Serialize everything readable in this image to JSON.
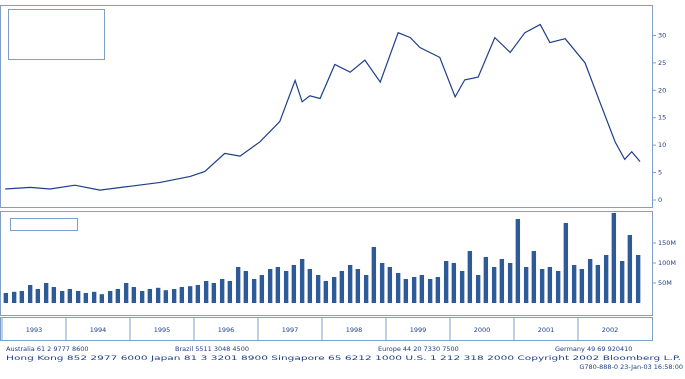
{
  "chart_data": [
    {
      "type": "line",
      "color": "#1d3f86",
      "x": [
        1993.05,
        1993.44,
        1993.75,
        1994.14,
        1994.53,
        1995.0,
        1995.47,
        1995.94,
        1996.17,
        1996.48,
        1996.72,
        1997.03,
        1997.34,
        1997.58,
        1997.69,
        1997.81,
        1997.97,
        1998.2,
        1998.44,
        1998.67,
        1998.91,
        1999.19,
        1999.38,
        1999.53,
        1999.84,
        2000.08,
        2000.23,
        2000.44,
        2000.7,
        2000.94,
        2001.17,
        2001.41,
        2001.56,
        2001.8,
        2002.11,
        2002.34,
        2002.58,
        2002.73,
        2002.84,
        2002.97
      ],
      "values": [
        2.0,
        2.3,
        2.0,
        2.7,
        1.8,
        2.5,
        3.2,
        4.3,
        5.2,
        8.5,
        8.0,
        10.6,
        14.3,
        21.8,
        17.9,
        19.0,
        18.5,
        24.7,
        23.3,
        25.5,
        21.5,
        30.5,
        29.6,
        27.8,
        26.0,
        18.8,
        21.9,
        22.4,
        29.6,
        26.9,
        30.5,
        32.0,
        28.7,
        29.4,
        25.0,
        17.9,
        10.6,
        7.4,
        8.8,
        7.0
      ],
      "xlim": [
        1993,
        2003
      ],
      "ylim": [
        0,
        35
      ],
      "yticks": [
        0,
        5,
        10,
        15,
        20,
        25,
        30
      ]
    },
    {
      "type": "bar",
      "color": "#2e5b98",
      "x": [
        1993.06,
        1993.19,
        1993.31,
        1993.44,
        1993.56,
        1993.69,
        1993.81,
        1993.94,
        1994.06,
        1994.19,
        1994.31,
        1994.44,
        1994.56,
        1994.69,
        1994.81,
        1994.94,
        1995.06,
        1995.19,
        1995.31,
        1995.44,
        1995.56,
        1995.69,
        1995.81,
        1995.94,
        1996.06,
        1996.19,
        1996.31,
        1996.44,
        1996.56,
        1996.69,
        1996.81,
        1996.94,
        1997.06,
        1997.19,
        1997.31,
        1997.44,
        1997.56,
        1997.69,
        1997.81,
        1997.94,
        1998.06,
        1998.19,
        1998.31,
        1998.44,
        1998.56,
        1998.69,
        1998.81,
        1998.94,
        1999.06,
        1999.19,
        1999.31,
        1999.44,
        1999.56,
        1999.69,
        1999.81,
        1999.94,
        2000.06,
        2000.19,
        2000.31,
        2000.44,
        2000.56,
        2000.69,
        2000.81,
        2000.94,
        2001.06,
        2001.19,
        2001.31,
        2001.44,
        2001.56,
        2001.69,
        2001.81,
        2001.94,
        2002.06,
        2002.19,
        2002.31,
        2002.44,
        2002.56,
        2002.69,
        2002.81,
        2002.94
      ],
      "values": [
        25,
        28,
        30,
        45,
        35,
        50,
        40,
        30,
        35,
        30,
        25,
        28,
        22,
        30,
        35,
        50,
        40,
        30,
        35,
        38,
        32,
        35,
        40,
        42,
        45,
        55,
        50,
        60,
        55,
        90,
        80,
        60,
        70,
        85,
        90,
        80,
        95,
        110,
        85,
        70,
        55,
        65,
        80,
        95,
        85,
        70,
        140,
        100,
        90,
        75,
        60,
        65,
        70,
        60,
        65,
        105,
        100,
        80,
        130,
        70,
        115,
        90,
        110,
        100,
        210,
        90,
        130,
        85,
        90,
        80,
        200,
        95,
        85,
        110,
        95,
        120,
        225,
        105,
        170,
        120
      ],
      "xlim": [
        1993,
        2003
      ],
      "ylim": [
        0,
        220
      ],
      "yticks": [
        {
          "value": 50,
          "label": "50M"
        },
        {
          "value": 100,
          "label": "100M"
        },
        {
          "value": 150,
          "label": "150M"
        }
      ],
      "xticks": [
        1993,
        1994,
        1995,
        1996,
        1997,
        1998,
        1999,
        2000,
        2001,
        2002
      ]
    }
  ],
  "footer": {
    "line1": [
      "Australia 61 2 9777 8600",
      "Brazil 5511 3048 4500",
      "Europe 44 20 7330 7500",
      "Germany 49 69 920410"
    ],
    "line2": "Hong Kong 852 2977 6000 Japan 81 3 3201 8900 Singapore 65 6212 1000 U.S. 1 212 318 2000 Copyright 2002 Bloomberg L.P.",
    "line3": "G780-888-0 23-Jan-03 16:58:00"
  }
}
